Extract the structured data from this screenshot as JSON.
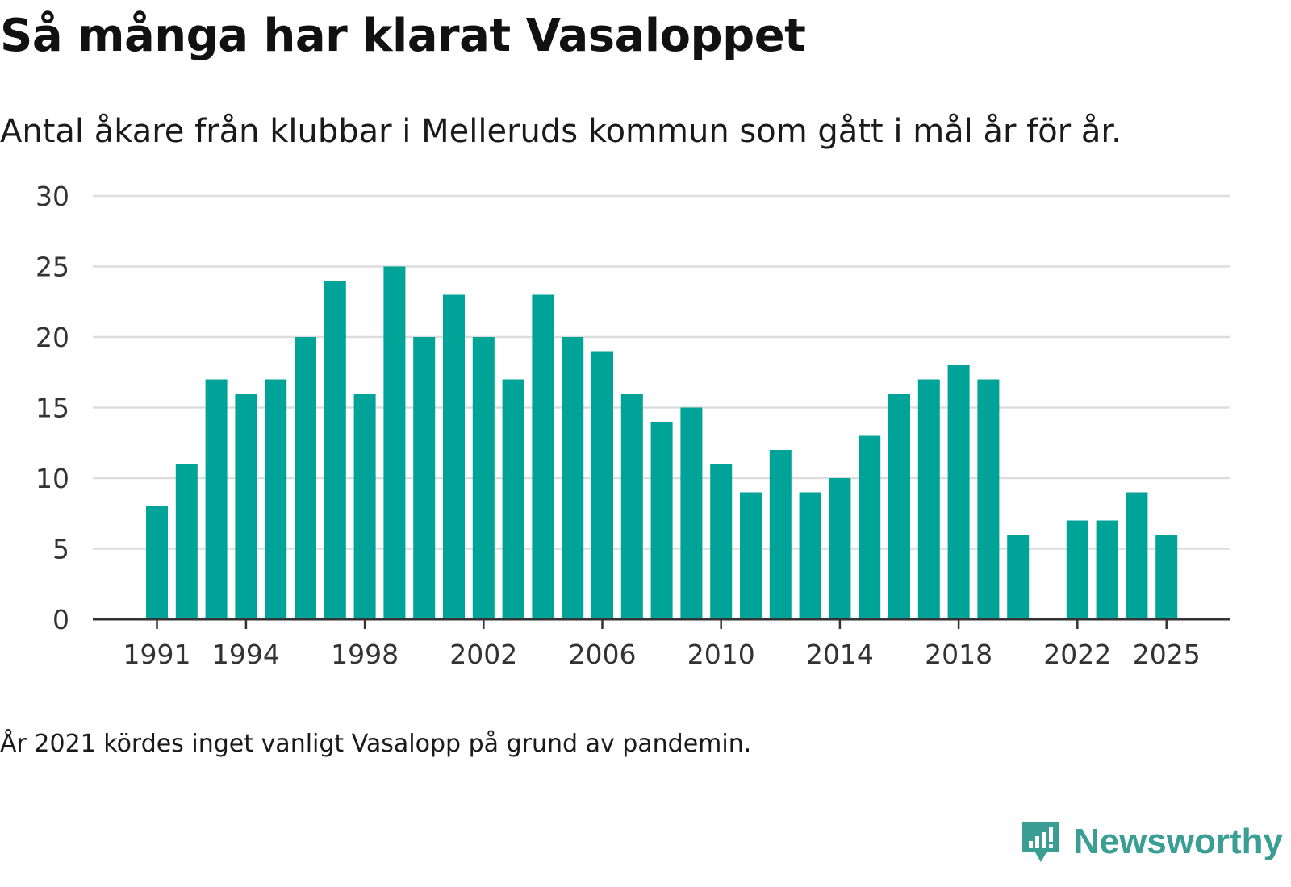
{
  "title": "Så många har klarat Vasaloppet",
  "subtitle": "Antal åkare från klubbar i Melleruds kommun som gått i mål år för år.",
  "footnote": "År 2021 kördes inget vanligt Vasalopp på grund av pandemin.",
  "brand": {
    "name": "Newsworthy",
    "color": "#3a9e94",
    "icon": "newsworthy-logo-icon"
  },
  "colors": {
    "bar": "#00a398",
    "grid": "#dddddd",
    "axis": "#333333"
  },
  "chart_data": {
    "type": "bar",
    "title": "Så många har klarat Vasaloppet",
    "xlabel": "",
    "ylabel": "",
    "ylim": [
      0,
      30
    ],
    "yticks": [
      0,
      5,
      10,
      15,
      20,
      25,
      30
    ],
    "xticks": [
      1991,
      1994,
      1998,
      2002,
      2006,
      2010,
      2014,
      2018,
      2022,
      2025
    ],
    "grid": true,
    "categories": [
      1991,
      1992,
      1993,
      1994,
      1995,
      1996,
      1997,
      1998,
      1999,
      2000,
      2001,
      2002,
      2003,
      2004,
      2005,
      2006,
      2007,
      2008,
      2009,
      2010,
      2011,
      2012,
      2013,
      2014,
      2015,
      2016,
      2017,
      2018,
      2019,
      2020,
      2021,
      2022,
      2023,
      2024,
      2025
    ],
    "values": [
      8,
      11,
      17,
      16,
      17,
      20,
      24,
      16,
      25,
      20,
      23,
      20,
      17,
      23,
      20,
      19,
      16,
      14,
      15,
      11,
      9,
      12,
      9,
      10,
      13,
      16,
      17,
      18,
      17,
      6,
      null,
      7,
      7,
      9,
      6
    ]
  }
}
